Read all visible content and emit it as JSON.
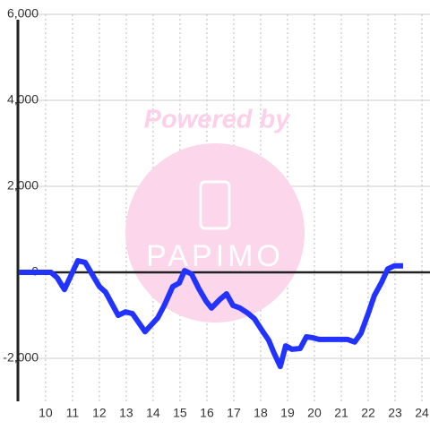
{
  "chart_data": {
    "type": "line",
    "watermark": {
      "text": "Powered by",
      "logo": "PAPIMO"
    },
    "x": [
      9.0,
      10.2,
      10.43,
      10.7,
      11.2,
      11.47,
      12.0,
      12.23,
      12.7,
      12.97,
      13.23,
      13.7,
      14.17,
      14.43,
      14.73,
      14.97,
      15.17,
      15.43,
      15.7,
      15.97,
      16.17,
      16.5,
      16.73,
      16.97,
      17.23,
      17.5,
      17.77,
      18.03,
      18.3,
      18.5,
      18.73,
      18.93,
      19.17,
      19.47,
      19.7,
      19.93,
      20.17,
      20.97,
      21.23,
      21.5,
      21.73,
      22.0,
      22.23,
      22.5,
      22.73,
      22.97,
      23.3
    ],
    "series": [
      {
        "color": "#2233ff",
        "values": [
          0,
          0,
          -125,
          -400,
          270,
          230,
          -330,
          -460,
          -1000,
          -920,
          -960,
          -1380,
          -1060,
          -750,
          -330,
          -250,
          40,
          -40,
          -380,
          -670,
          -830,
          -620,
          -500,
          -770,
          -830,
          -940,
          -1080,
          -1330,
          -1580,
          -1880,
          -2190,
          -1710,
          -1790,
          -1770,
          -1500,
          -1520,
          -1560,
          -1560,
          -1560,
          -1620,
          -1420,
          -960,
          -540,
          -230,
          80,
          150,
          150
        ]
      }
    ],
    "xlim": [
      8.97,
      24.3
    ],
    "xticks": [
      10,
      11,
      12,
      13,
      14,
      15,
      16,
      17,
      18,
      19,
      20,
      21,
      22,
      23,
      24
    ],
    "ylim": [
      -3000,
      6000
    ],
    "yticks": [
      {
        "value": 6000,
        "label": "6,000"
      },
      {
        "value": 4000,
        "label": "4,000"
      },
      {
        "value": 2000,
        "label": "2,000"
      },
      0,
      {
        "value": -2000,
        "label": "-2,000"
      }
    ],
    "grid": true
  }
}
